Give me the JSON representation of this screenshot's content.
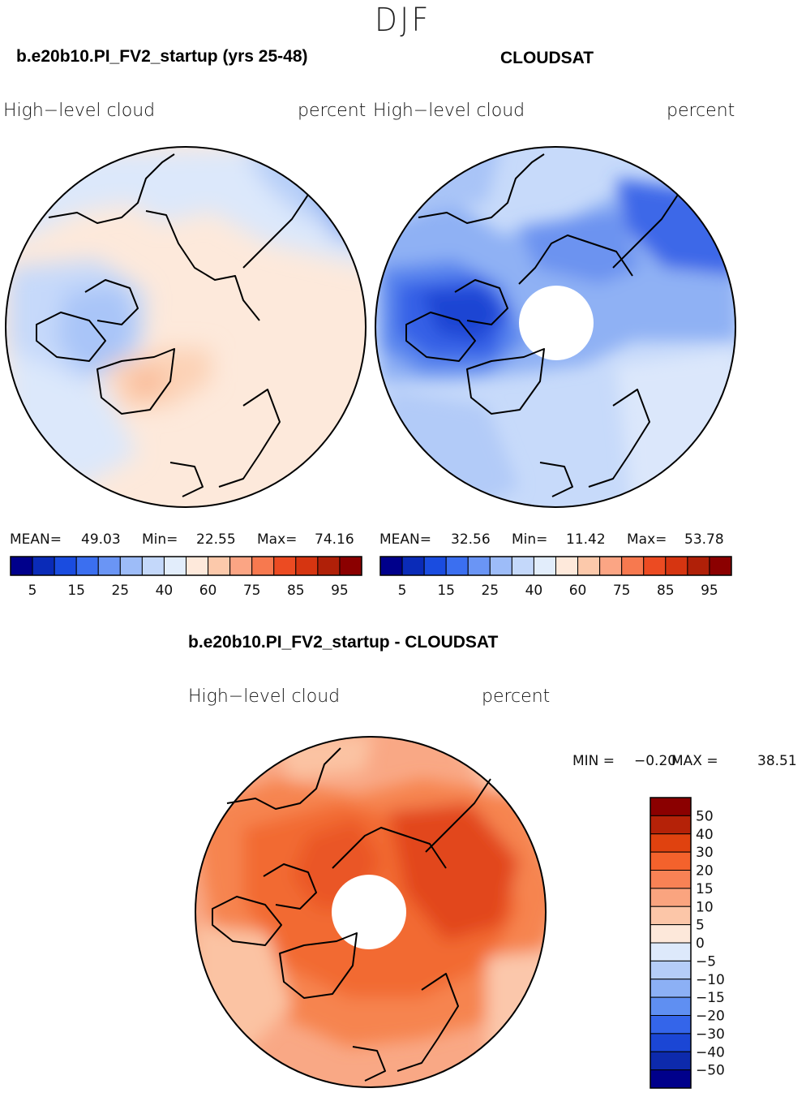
{
  "season": "DJF",
  "panels": [
    {
      "title": "b.e20b10.PI_FV2_startup (yrs 25-48)",
      "left_label": "High−level  cloud",
      "right_label": "percent",
      "stats": {
        "mean_label": "MEAN=",
        "mean": "49.03",
        "min_label": "Min=",
        "min": "22.55",
        "max_label": "Max=",
        "max": "74.16"
      },
      "colorbar_ticks": [
        "5",
        "15",
        "25",
        "40",
        "60",
        "75",
        "85",
        "95"
      ]
    },
    {
      "title": "CLOUDSAT",
      "left_label": "High−level  cloud",
      "right_label": "percent",
      "stats": {
        "mean_label": "MEAN=",
        "mean": "32.56",
        "min_label": "Min=",
        "min": "11.42",
        "max_label": "Max=",
        "max": "53.78"
      },
      "colorbar_ticks": [
        "5",
        "15",
        "25",
        "40",
        "60",
        "75",
        "85",
        "95"
      ]
    },
    {
      "title": "b.e20b10.PI_FV2_startup - CLOUDSAT",
      "left_label": "High−level  cloud",
      "right_label": "percent",
      "stats": {
        "min_label": "MIN =",
        "min": "−0.20",
        "max_label": "MAX =",
        "max": "38.51"
      },
      "colorbar_ticks": [
        "50",
        "40",
        "30",
        "20",
        "15",
        "10",
        "5",
        "0",
        "−5",
        "−10",
        "−15",
        "−20",
        "−30",
        "−40",
        "−50"
      ]
    }
  ],
  "colors": {
    "abs_scale": [
      "#00008b",
      "#0a2bb8",
      "#1a4ce0",
      "#3b6ff0",
      "#6a95f5",
      "#9dbcf8",
      "#c4d8fa",
      "#e2edfb",
      "#fee9db",
      "#fcc9ab",
      "#fba584",
      "#f7794f",
      "#ec4b22",
      "#d63511",
      "#b02008",
      "#8b0000"
    ],
    "diff_scale": [
      "#8b0000",
      "#b52208",
      "#e0420f",
      "#f4622c",
      "#f88255",
      "#faa47f",
      "#fcc6a8",
      "#fde8da",
      "#dde9fb",
      "#b5cdf8",
      "#8cb0f5",
      "#5f8ff2",
      "#3465ea",
      "#1b46d5",
      "#0d2aac",
      "#00008b"
    ]
  },
  "chart_data": [
    {
      "type": "heatmap",
      "title": "b.e20b10.PI_FV2_startup (yrs 25-48)",
      "projection": "north polar stereographic",
      "variable": "High-level cloud",
      "units": "percent",
      "mean": 49.03,
      "min": 22.55,
      "max": 74.16,
      "contour_levels": [
        5,
        10,
        15,
        20,
        25,
        30,
        40,
        50,
        60,
        70,
        75,
        80,
        85,
        90,
        95
      ]
    },
    {
      "type": "heatmap",
      "title": "CLOUDSAT",
      "projection": "north polar stereographic",
      "variable": "High-level cloud",
      "units": "percent",
      "mean": 32.56,
      "min": 11.42,
      "max": 53.78,
      "contour_levels": [
        5,
        10,
        15,
        20,
        25,
        30,
        40,
        50,
        60,
        70,
        75,
        80,
        85,
        90,
        95
      ]
    },
    {
      "type": "heatmap",
      "title": "b.e20b10.PI_FV2_startup - CLOUDSAT",
      "projection": "north polar stereographic",
      "variable": "High-level cloud",
      "units": "percent",
      "min": -0.2,
      "max": 38.51,
      "contour_levels": [
        -50,
        -40,
        -30,
        -20,
        -15,
        -10,
        -5,
        0,
        5,
        10,
        15,
        20,
        30,
        40,
        50
      ]
    }
  ]
}
